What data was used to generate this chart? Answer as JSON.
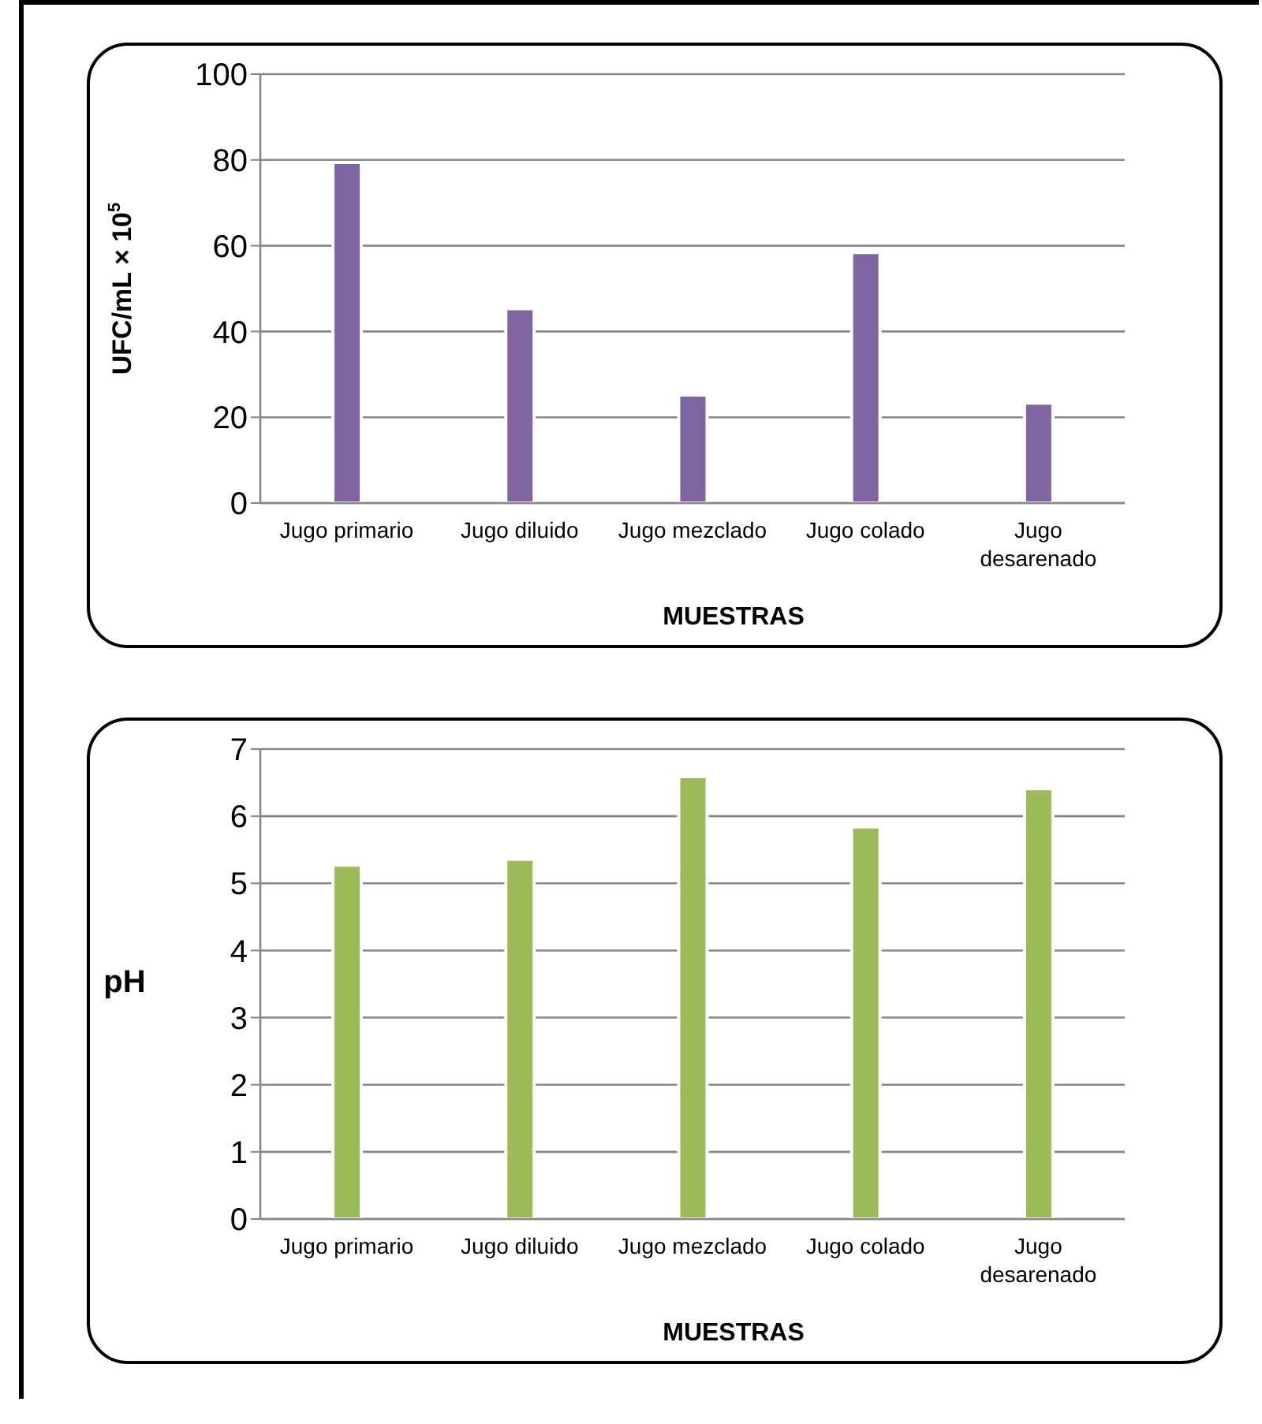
{
  "chart_data": [
    {
      "type": "bar",
      "categories": [
        "Jugo primario",
        "Jugo diluido",
        "Jugo mezclado",
        "Jugo colado",
        "Jugo desarenado"
      ],
      "values": [
        79.4,
        45.3,
        25.2,
        58.4,
        23.3
      ],
      "color": "#8064a2",
      "ylim": [
        0,
        100
      ],
      "yticks": [
        0,
        20,
        40,
        60,
        80,
        100
      ],
      "grid": "y",
      "xlabel": "MUESTRAS",
      "ylabel": "UFC/mL × 10$^{5}$"
    },
    {
      "type": "bar",
      "categories": [
        "Jugo primario",
        "Jugo diluido",
        "Jugo mezclado",
        "Jugo colado",
        "Jugo desarenado"
      ],
      "values": [
        5.27,
        5.36,
        6.59,
        5.84,
        6.41
      ],
      "color": "#9bbb59",
      "ylim": [
        0,
        7
      ],
      "yticks": [
        0,
        1,
        2,
        3,
        4,
        5,
        6,
        7
      ],
      "grid": "y",
      "xlabel": "MUESTRAS",
      "ylabel": "pH"
    }
  ]
}
